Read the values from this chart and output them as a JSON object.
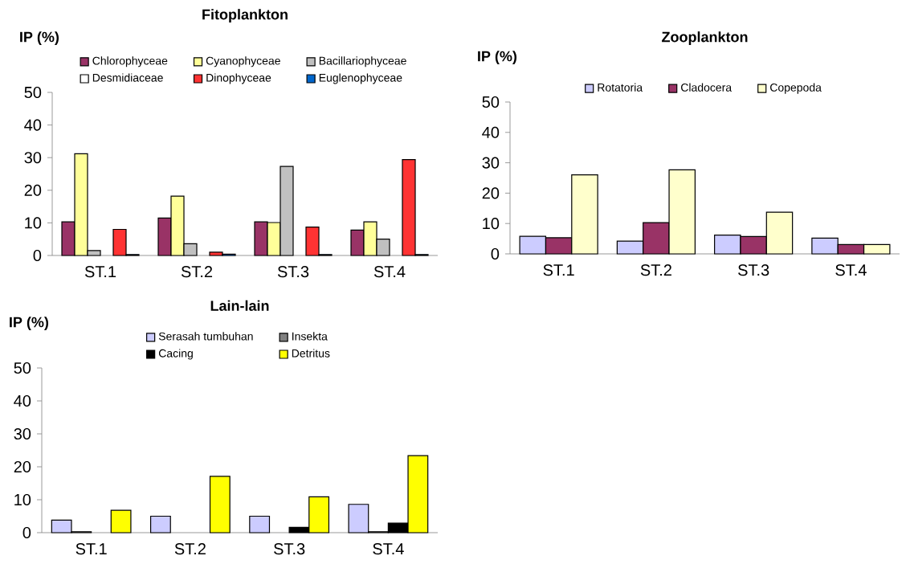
{
  "chart_data": [
    {
      "type": "bar",
      "title": "Fitoplankton",
      "ylabel": "IP (%)",
      "categories": [
        "ST.1",
        "ST.2",
        "ST.3",
        "ST.4"
      ],
      "ylim": [
        0,
        50
      ],
      "yticks": [
        0,
        10,
        20,
        30,
        40,
        50
      ],
      "legend": "top",
      "grid": false,
      "series": [
        {
          "name": "Chlorophyceae",
          "color": "#993366",
          "values": [
            10.3,
            11.5,
            10.3,
            7.8
          ]
        },
        {
          "name": "Cyanophyceae",
          "color": "#ffff99",
          "values": [
            31.2,
            18.2,
            10.1,
            10.3
          ]
        },
        {
          "name": "Bacillariophyceae",
          "color": "#c0c0c0",
          "values": [
            1.5,
            3.6,
            27.3,
            5.0
          ]
        },
        {
          "name": "Desmidiaceae",
          "color": "#ffffff",
          "values": [
            null,
            null,
            null,
            null
          ]
        },
        {
          "name": "Dinophyceae",
          "color": "#ff3333",
          "values": [
            8.0,
            1.0,
            8.7,
            29.4
          ]
        },
        {
          "name": "Euglenophyceae",
          "color": "#0066cc",
          "values": [
            0.3,
            0.4,
            0.3,
            0.3
          ]
        }
      ]
    },
    {
      "type": "bar",
      "title": "Zooplankton",
      "ylabel": "IP (%)",
      "categories": [
        "ST.1",
        "ST.2",
        "ST.3",
        "ST.4"
      ],
      "ylim": [
        0,
        50
      ],
      "yticks": [
        0,
        10,
        20,
        30,
        40,
        50
      ],
      "legend": "top",
      "grid": false,
      "series": [
        {
          "name": "Rotatoria",
          "color": "#ccccff",
          "values": [
            5.8,
            4.2,
            6.2,
            5.2
          ]
        },
        {
          "name": "Cladocera",
          "color": "#993366",
          "values": [
            5.3,
            10.3,
            5.7,
            3.1
          ]
        },
        {
          "name": "Copepoda",
          "color": "#ffffcc",
          "values": [
            26.0,
            27.7,
            13.7,
            3.1
          ]
        }
      ]
    },
    {
      "type": "bar",
      "title": "Lain-lain",
      "ylabel": "IP (%)",
      "categories": [
        "ST.1",
        "ST.2",
        "ST.3",
        "ST.4"
      ],
      "ylim": [
        0,
        50
      ],
      "yticks": [
        0,
        10,
        20,
        30,
        40,
        50
      ],
      "legend": "top",
      "grid": false,
      "series": [
        {
          "name": "Serasah tumbuhan",
          "color": "#ccccff",
          "values": [
            3.8,
            5.0,
            5.0,
            8.6
          ]
        },
        {
          "name": "Insekta",
          "color": "#808080",
          "values": [
            0.3,
            null,
            null,
            0.3
          ]
        },
        {
          "name": "Cacing",
          "color": "#000000",
          "values": [
            null,
            null,
            1.6,
            2.9
          ]
        },
        {
          "name": "Detritus",
          "color": "#ffff00",
          "values": [
            6.8,
            17.1,
            10.9,
            23.4
          ]
        }
      ]
    }
  ]
}
